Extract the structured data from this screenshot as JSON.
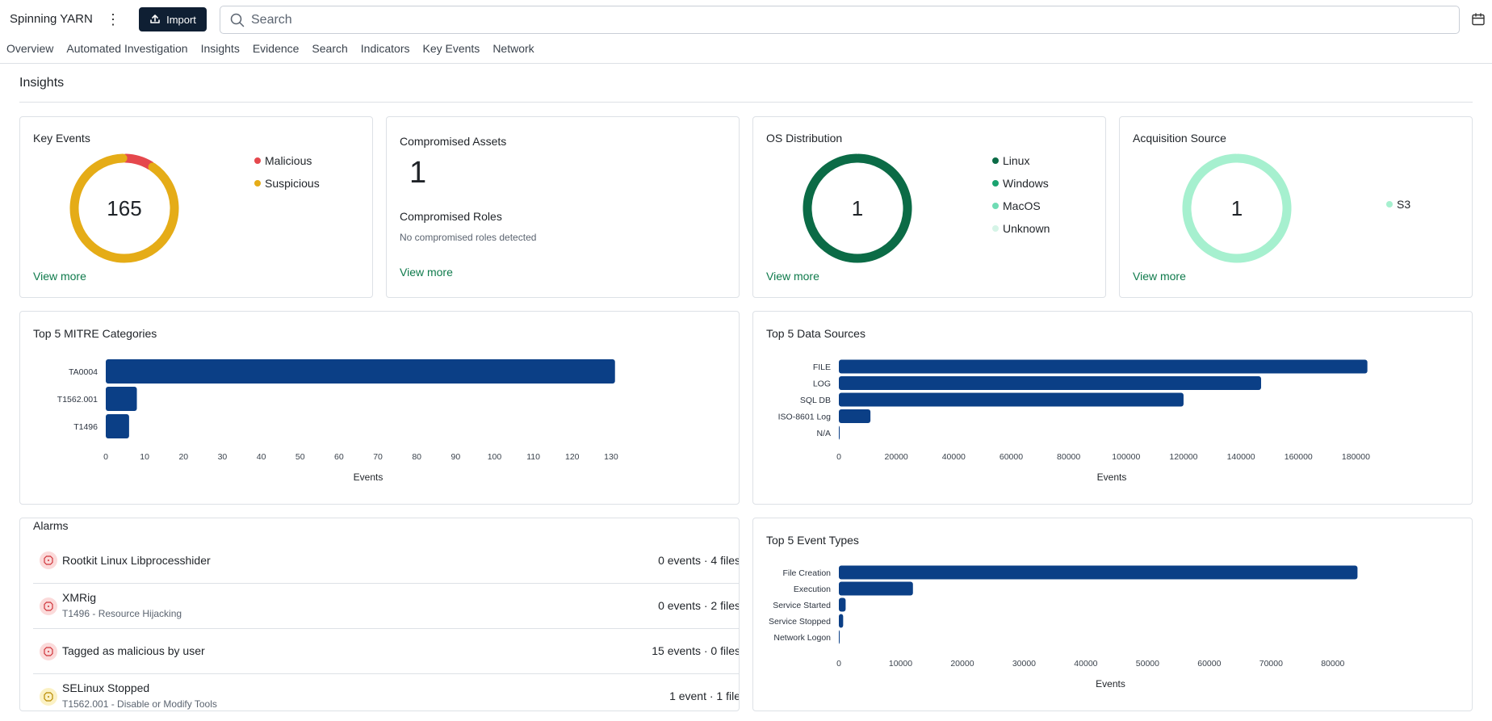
{
  "header": {
    "case_title": "Spinning YARN",
    "import_label": "Import",
    "search_placeholder": "Search"
  },
  "tabs": [
    "Overview",
    "Automated Investigation",
    "Insights",
    "Evidence",
    "Search",
    "Indicators",
    "Key Events",
    "Network"
  ],
  "section_title": "Insights",
  "view_more_label": "View more",
  "key_events": {
    "title": "Key Events",
    "total": "165",
    "legend": [
      {
        "label": "Malicious",
        "color": "#e5484d"
      },
      {
        "label": "Suspicious",
        "color": "#e5ac17"
      }
    ],
    "chart_data": {
      "type": "pie",
      "categories": [
        "Malicious",
        "Suspicious"
      ],
      "values": [
        15,
        150
      ]
    }
  },
  "compromised": {
    "assets_title": "Compromised Assets",
    "assets_value": "1",
    "roles_title": "Compromised Roles",
    "roles_text": "No compromised roles detected"
  },
  "os_distribution": {
    "title": "OS Distribution",
    "total": "1",
    "legend": [
      {
        "label": "Linux",
        "color": "#0b6b46"
      },
      {
        "label": "Windows",
        "color": "#1aa370"
      },
      {
        "label": "MacOS",
        "color": "#6fdcb4"
      },
      {
        "label": "Unknown",
        "color": "#d5f4e7"
      }
    ],
    "chart_data": {
      "type": "pie",
      "categories": [
        "Linux",
        "Windows",
        "MacOS",
        "Unknown"
      ],
      "values": [
        1,
        0,
        0,
        0
      ]
    }
  },
  "acquisition_source": {
    "title": "Acquisition Source",
    "total": "1",
    "legend": [
      {
        "label": "S3",
        "color": "#a6f0cf"
      }
    ],
    "chart_data": {
      "type": "pie",
      "categories": [
        "S3"
      ],
      "values": [
        1
      ]
    }
  },
  "mitre": {
    "title": "Top 5 MITRE Categories",
    "chart_data": {
      "type": "bar",
      "orientation": "horizontal",
      "categories": [
        "TA0004",
        "T1562.001",
        "T1496"
      ],
      "values": [
        131,
        8,
        6
      ],
      "xlabel": "Events",
      "xlim": [
        0,
        135
      ],
      "xticks": [
        0,
        10,
        20,
        30,
        40,
        50,
        60,
        70,
        80,
        90,
        100,
        110,
        120,
        130
      ],
      "color": "#0b3f86"
    }
  },
  "data_sources": {
    "title": "Top 5 Data Sources",
    "chart_data": {
      "type": "bar",
      "orientation": "horizontal",
      "categories": [
        "FILE",
        "LOG",
        "SQL DB",
        "ISO-8601 Log",
        "N/A"
      ],
      "values": [
        184000,
        147000,
        120000,
        11000,
        0
      ],
      "xlabel": "Events",
      "xlim": [
        0,
        190000
      ],
      "xticks": [
        0,
        20000,
        40000,
        60000,
        80000,
        100000,
        120000,
        140000,
        160000,
        180000
      ],
      "color": "#0b3f86"
    }
  },
  "alarms": {
    "title": "Alarms",
    "items": [
      {
        "name": "Rootkit Linux Libprocesshider",
        "sub": "",
        "stats": "0 events · 4 files",
        "severity": "high",
        "icon": "alert-octagon-icon"
      },
      {
        "name": "XMRig",
        "sub": "T1496 - Resource Hijacking",
        "stats": "0 events · 2 files",
        "severity": "high",
        "icon": "alert-octagon-icon"
      },
      {
        "name": "Tagged as malicious by user",
        "sub": "",
        "stats": "15 events · 0 files",
        "severity": "high",
        "icon": "alert-octagon-icon"
      },
      {
        "name": "SELinux Stopped",
        "sub": "T1562.001 - Disable or Modify Tools",
        "stats": "1 event · 1 file",
        "severity": "medium",
        "icon": "alert-octagon-icon"
      }
    ]
  },
  "event_types": {
    "title": "Top 5 Event Types",
    "chart_data": {
      "type": "bar",
      "orientation": "horizontal",
      "categories": [
        "File Creation",
        "Execution",
        "Service Started",
        "Service Stopped",
        "Network Logon"
      ],
      "values": [
        84000,
        12000,
        1100,
        700,
        100
      ],
      "xlabel": "Events",
      "xlim": [
        0,
        88000
      ],
      "xticks": [
        0,
        10000,
        20000,
        30000,
        40000,
        50000,
        60000,
        70000,
        80000
      ],
      "color": "#0b3f86"
    }
  }
}
